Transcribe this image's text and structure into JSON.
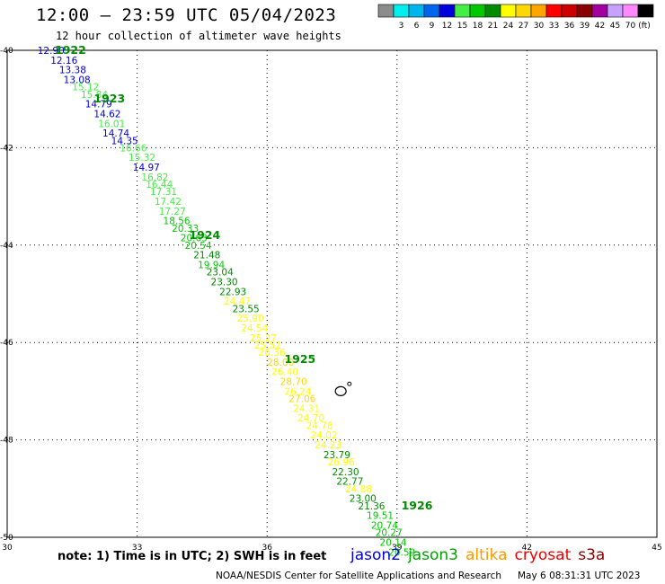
{
  "header": {
    "title": "12:00 — 23:59 UTC 05/04/2023",
    "subtitle": "12 hour collection of altimeter wave heights"
  },
  "footer": {
    "note": "note: 1) Time is in UTC; 2) SWH is in feet",
    "satellites": [
      {
        "name": "jason2",
        "color": "#0000dd"
      },
      {
        "name": "jason3",
        "color": "#00a000"
      },
      {
        "name": "altika",
        "color": "#ff9900"
      },
      {
        "name": "cryosat",
        "color": "#ee0000"
      },
      {
        "name": "s3a",
        "color": "#880000"
      }
    ],
    "credit": "NOAA/NESDIS Center for Satellite Applications and Research",
    "generated": "May  6 08:31:31 UTC 2023"
  },
  "colorbar": {
    "unit_label": "(ft)",
    "bins": [
      {
        "label": "",
        "color": "#8c8c8c"
      },
      {
        "label": "3",
        "color": "#00eeee"
      },
      {
        "label": "6",
        "color": "#00b4ee"
      },
      {
        "label": "9",
        "color": "#0066ee"
      },
      {
        "label": "12",
        "color": "#0000dd"
      },
      {
        "label": "15",
        "color": "#44ee44"
      },
      {
        "label": "18",
        "color": "#00c800"
      },
      {
        "label": "21",
        "color": "#008c00"
      },
      {
        "label": "24",
        "color": "#ffff00"
      },
      {
        "label": "27",
        "color": "#ffd700"
      },
      {
        "label": "30",
        "color": "#ffa500"
      },
      {
        "label": "33",
        "color": "#ff0000"
      },
      {
        "label": "36",
        "color": "#cc0000"
      },
      {
        "label": "39",
        "color": "#8b0000"
      },
      {
        "label": "42",
        "color": "#a000a0"
      },
      {
        "label": "45",
        "color": "#c8a0ff"
      },
      {
        "label": "70",
        "color": "#ff88ff"
      },
      {
        "label": "",
        "color": "#000000"
      }
    ]
  },
  "chart_data": {
    "type": "scatter",
    "title": "12:00 — 23:59 UTC 05/04/2023",
    "subtitle": "12 hour collection of altimeter wave heights",
    "xlim": [
      30,
      45
    ],
    "ylim": [
      -50,
      -40
    ],
    "x_ticks": [
      30,
      33,
      36,
      39,
      42,
      45
    ],
    "y_ticks": [
      -40,
      -42,
      -44,
      -46,
      -48,
      -50
    ],
    "grid": true,
    "units": "ft",
    "thresholds": [
      3,
      6,
      9,
      12,
      15,
      18,
      21,
      24,
      27,
      30,
      33,
      36,
      39,
      42,
      45,
      70
    ],
    "threshold_colors": [
      "#8c8c8c",
      "#00eeee",
      "#00b4ee",
      "#0066ee",
      "#0000dd",
      "#44ee44",
      "#00c800",
      "#008c00",
      "#ffff00",
      "#ffd700",
      "#ffa500",
      "#ff0000",
      "#cc0000",
      "#8b0000",
      "#a000a0",
      "#c8a0ff",
      "#ff88ff",
      "#000000"
    ],
    "swh": [
      "12.90",
      "12.16",
      "13.38",
      "13.08",
      "15.12",
      "15.84",
      "14.79",
      "14.62",
      "16.01",
      "14.74",
      "14.35",
      "16.66",
      "15.32",
      "14.97",
      "16.82",
      "16.44",
      "17.31",
      "17.42",
      "17.27",
      "18.56",
      "20.33",
      "20.63",
      "20.54",
      "21.48",
      "19.94",
      "23.04",
      "23.30",
      "22.93",
      "24.47",
      "23.55",
      "25.90",
      "24.54",
      "25.27",
      "25.52",
      "26.36",
      "28.00",
      "26.40",
      "28.70",
      "26.24",
      "27.06",
      "24.31",
      "24.70",
      "24.78",
      "24.02",
      "24.23",
      "23.79",
      "26.96",
      "22.30",
      "22.77",
      "24.88",
      "23.00",
      "21.36",
      "19.51",
      "20.74",
      "20.27",
      "20.14",
      "20.59"
    ],
    "lon": [
      30.7,
      31.0,
      31.2,
      31.3,
      31.5,
      31.7,
      31.8,
      32.0,
      32.1,
      32.2,
      32.4,
      32.6,
      32.8,
      32.9,
      33.1,
      33.2,
      33.3,
      33.4,
      33.5,
      33.6,
      33.8,
      34.0,
      34.1,
      34.3,
      34.4,
      34.6,
      34.7,
      34.9,
      35.0,
      35.2,
      35.3,
      35.4,
      35.6,
      35.7,
      35.8,
      36.0,
      36.1,
      36.3,
      36.4,
      36.5,
      36.6,
      36.7,
      36.9,
      37.0,
      37.1,
      37.3,
      37.4,
      37.5,
      37.6,
      37.8,
      37.9,
      38.1,
      38.3,
      38.4,
      38.5,
      38.6,
      38.8
    ],
    "lat": [
      -40.0,
      -40.2,
      -40.4,
      -40.6,
      -40.75,
      -40.9,
      -41.1,
      -41.3,
      -41.5,
      -41.7,
      -41.85,
      -42.0,
      -42.2,
      -42.4,
      -42.6,
      -42.75,
      -42.9,
      -43.1,
      -43.3,
      -43.5,
      -43.65,
      -43.85,
      -44.0,
      -44.2,
      -44.4,
      -44.55,
      -44.75,
      -44.95,
      -45.15,
      -45.3,
      -45.5,
      -45.7,
      -45.9,
      -46.05,
      -46.2,
      -46.4,
      -46.6,
      -46.8,
      -47.0,
      -47.15,
      -47.35,
      -47.55,
      -47.7,
      -47.9,
      -48.1,
      -48.3,
      -48.45,
      -48.65,
      -48.85,
      -49.0,
      -49.2,
      -49.35,
      -49.55,
      -49.75,
      -49.9,
      -50.1,
      -50.3
    ],
    "time_labels": [
      {
        "text": "1922",
        "lon": 31.1,
        "lat": -40.0
      },
      {
        "text": "1923",
        "lon": 32.0,
        "lat": -41.0
      },
      {
        "text": "1924",
        "lon": 34.2,
        "lat": -43.8
      },
      {
        "text": "1925",
        "lon": 36.4,
        "lat": -46.35
      },
      {
        "text": "1926",
        "lon": 39.1,
        "lat": -49.35
      }
    ],
    "land_features": [
      {
        "name": "island-large",
        "lon": 37.7,
        "lat": -47.0
      },
      {
        "name": "island-small",
        "lon": 37.9,
        "lat": -46.85
      }
    ]
  }
}
